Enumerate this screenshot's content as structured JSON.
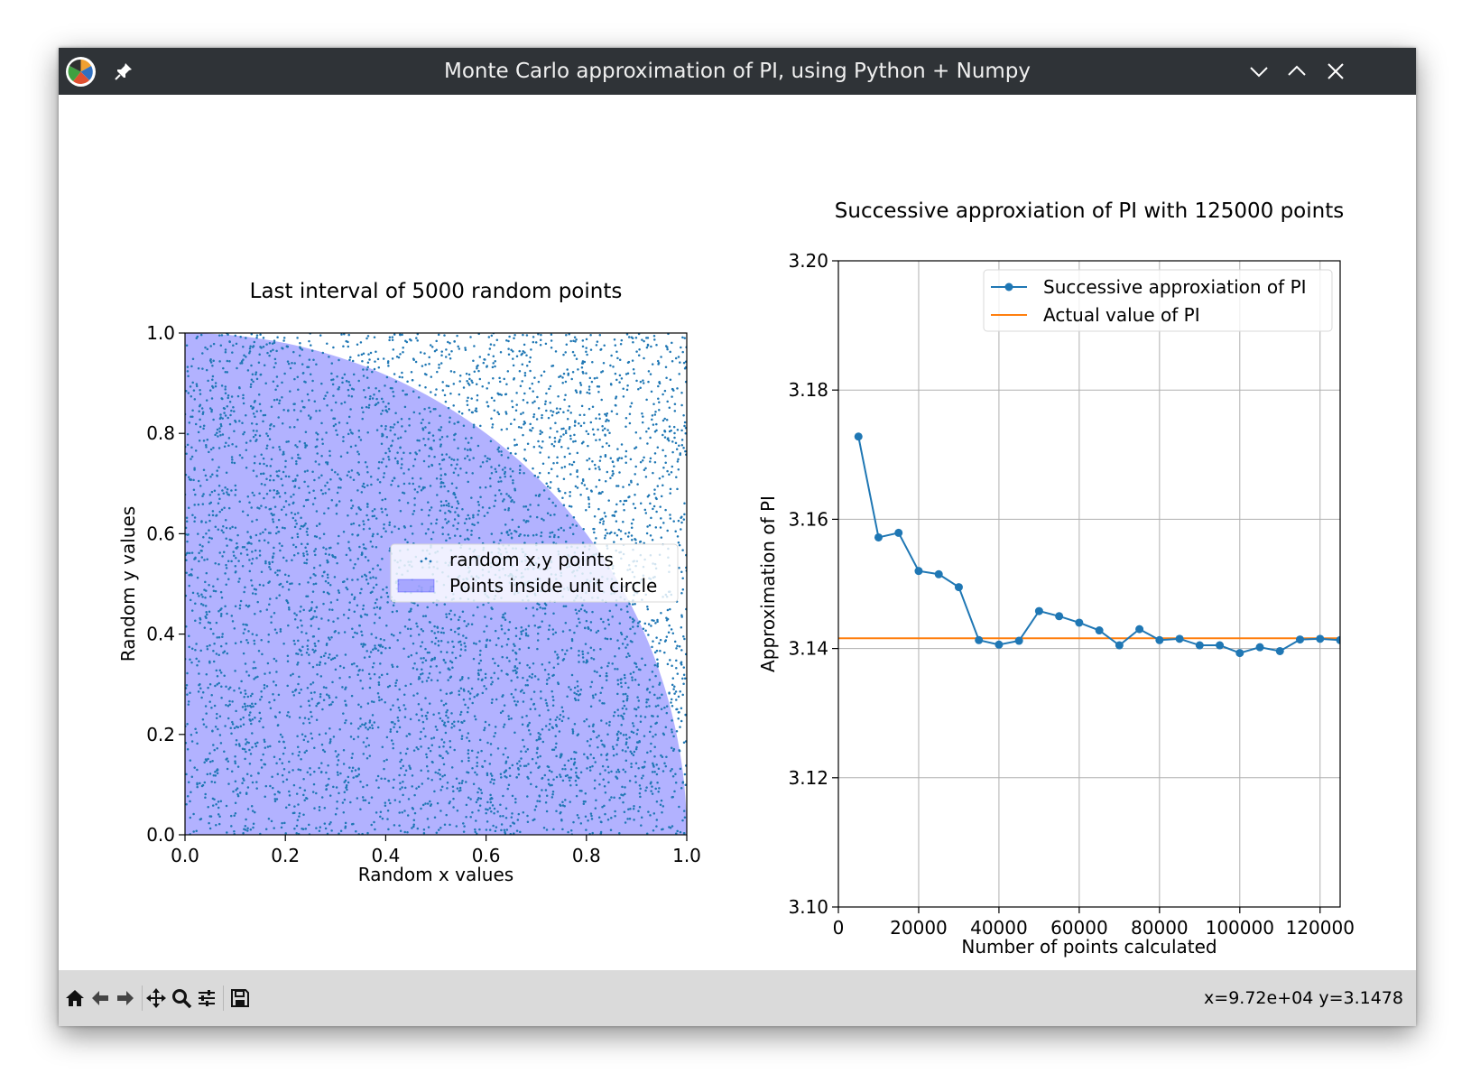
{
  "window": {
    "title": "Monte Carlo approximation of PI, using Python + Numpy"
  },
  "icons": {
    "app": "app-logo-icon",
    "pin": "pin-icon",
    "minimize": "chevron-down-icon",
    "maximize": "chevron-up-icon",
    "close": "close-icon"
  },
  "toolbar": {
    "buttons": [
      "home-icon",
      "back-arrow-icon",
      "forward-arrow-icon",
      "pan-icon",
      "zoom-icon",
      "configure-subplots-icon",
      "save-icon"
    ],
    "coords": "x=9.72e+04 y=3.1478"
  },
  "chart_data": [
    {
      "type": "scatter",
      "title": "Last interval of 5000 random points",
      "xlabel": "Random x values",
      "ylabel": "Random y values",
      "xlim": [
        0.0,
        1.0
      ],
      "ylim": [
        0.0,
        1.0
      ],
      "xticks": [
        "0.0",
        "0.2",
        "0.4",
        "0.6",
        "0.8",
        "1.0"
      ],
      "yticks": [
        "0.0",
        "0.2",
        "0.4",
        "0.6",
        "0.8",
        "1.0"
      ],
      "point_count": 5000,
      "series": [
        {
          "name": "random x,y points",
          "kind": "scatter",
          "color": "#1f77b4"
        },
        {
          "name": "Points inside unit circle",
          "kind": "area",
          "color": "#0000ff",
          "alpha": 0.3,
          "shape": "quarter unit circle y = sqrt(1 - x^2)"
        }
      ],
      "legend": "center-right",
      "grid": false
    },
    {
      "type": "line",
      "title": "Successive approxiation of PI with 125000 points",
      "xlabel": "Number of points calculated",
      "ylabel": "Approximation of PI",
      "xlim": [
        0,
        125000
      ],
      "ylim": [
        3.1,
        3.2
      ],
      "xticks": [
        "0",
        "20000",
        "40000",
        "60000",
        "80000",
        "100000",
        "120000"
      ],
      "yticks": [
        "3.10",
        "3.12",
        "3.14",
        "3.16",
        "3.18",
        "3.20"
      ],
      "x": [
        5000,
        10000,
        15000,
        20000,
        25000,
        30000,
        35000,
        40000,
        45000,
        50000,
        55000,
        60000,
        65000,
        70000,
        75000,
        80000,
        85000,
        90000,
        95000,
        100000,
        105000,
        110000,
        115000,
        120000,
        125000
      ],
      "series": [
        {
          "name": "Successive approxiation of PI",
          "color": "#1f77b4",
          "marker": "circle",
          "values": [
            3.1728,
            3.1572,
            3.1579,
            3.152,
            3.1515,
            3.1495,
            3.1413,
            3.1406,
            3.1412,
            3.1458,
            3.145,
            3.144,
            3.1428,
            3.1405,
            3.143,
            3.1413,
            3.1415,
            3.1405,
            3.1405,
            3.1393,
            3.1402,
            3.1396,
            3.1414,
            3.1415,
            3.1413
          ]
        },
        {
          "name": "Actual value of PI",
          "color": "#ff7f0e",
          "constant": 3.14159265
        }
      ],
      "legend": "top-right",
      "grid": true
    }
  ]
}
